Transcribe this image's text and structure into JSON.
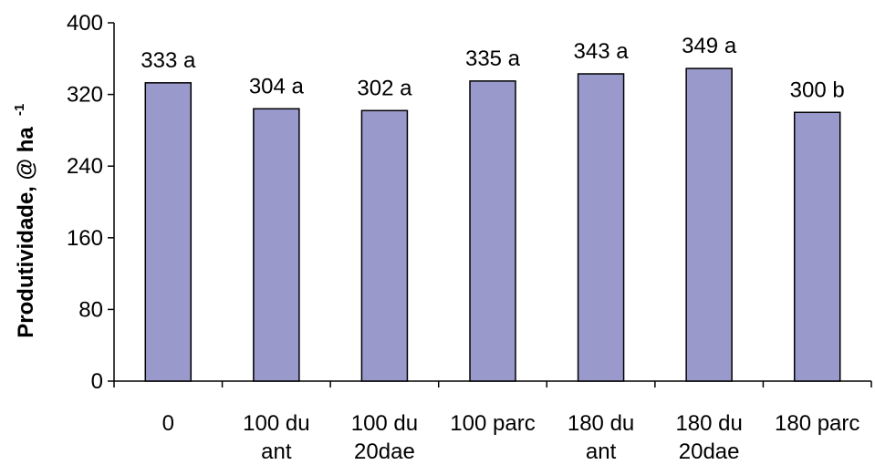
{
  "chart_data": {
    "type": "bar",
    "categories": [
      [
        "0"
      ],
      [
        "100 du",
        "ant"
      ],
      [
        "100 du",
        "20dae"
      ],
      [
        "100 parc"
      ],
      [
        "180 du",
        "ant"
      ],
      [
        "180 du",
        "20dae"
      ],
      [
        "180 parc"
      ]
    ],
    "values": [
      333,
      304,
      302,
      335,
      343,
      349,
      300
    ],
    "data_labels": [
      "333 a",
      "304 a",
      "302 a",
      "335 a",
      "343 a",
      "349 a",
      "300 b"
    ],
    "ylabel": "Produtividade, @ ha",
    "ylabel_superscript": "-1",
    "xlabel": "",
    "ylim": [
      0,
      400
    ],
    "yticks": [
      "0",
      "80",
      "160",
      "240",
      "320",
      "400"
    ],
    "grid": false,
    "legend": "none",
    "colors": {
      "bar_fill": "#9999cc",
      "bar_stroke": "#000000",
      "axis": "#000000",
      "text": "#000000"
    }
  }
}
